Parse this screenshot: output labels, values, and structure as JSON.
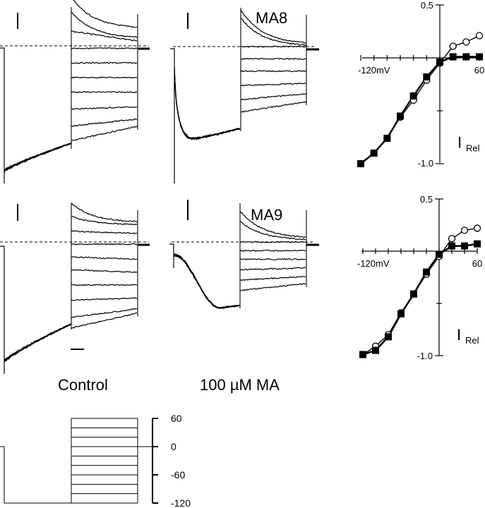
{
  "figure": {
    "panel_labels": {
      "control": "Control",
      "drug": "100 µM MA",
      "cell_row1": "MA8",
      "cell_row2": "MA9"
    },
    "colors": {
      "ink": "#000000",
      "background": "#ffffff"
    }
  },
  "chart_data": [
    {
      "type": "line",
      "id": "protocol",
      "title": "Voltage-step protocol",
      "ylabel": "mV",
      "ytick_labels": [
        "60",
        "0",
        "-60",
        "-120"
      ],
      "yticks": [
        60,
        0,
        -60,
        -120
      ],
      "holding_mV": 0,
      "prepulse_mV": -120,
      "test_steps_mV": [
        -120,
        -100,
        -80,
        -60,
        -40,
        -20,
        0,
        20,
        40,
        60
      ]
    },
    {
      "type": "line",
      "id": "iv-ma8",
      "title": "MA8 I-V",
      "xlabel": "mV",
      "ylabel": "I Rel",
      "x_tick_labels": {
        "min": "-120mV",
        "max": "60"
      },
      "y_tick_labels": {
        "max": "0.5",
        "min": "-1.0"
      },
      "xlim": [
        -120,
        60
      ],
      "ylim": [
        -1.0,
        0.5
      ],
      "x": [
        -120,
        -100,
        -80,
        -60,
        -40,
        -20,
        0,
        20,
        40,
        60
      ],
      "series": [
        {
          "name": "Control",
          "marker": "filled-square",
          "values": [
            -1.0,
            -0.9,
            -0.76,
            -0.55,
            -0.36,
            -0.18,
            -0.04,
            0.01,
            0.01,
            0.01
          ]
        },
        {
          "name": "100 µM MA",
          "marker": "open-circle",
          "values": [
            -1.0,
            -0.9,
            -0.76,
            -0.56,
            -0.4,
            -0.21,
            -0.05,
            0.11,
            0.15,
            0.21
          ]
        }
      ]
    },
    {
      "type": "line",
      "id": "iv-ma9",
      "title": "MA9 I-V",
      "xlabel": "mV",
      "ylabel": "I Rel",
      "x_tick_labels": {
        "min": "-120mV",
        "max": "60"
      },
      "y_tick_labels": {
        "max": "0.5",
        "min": "-1.0"
      },
      "xlim": [
        -120,
        60
      ],
      "ylim": [
        -1.0,
        0.5
      ],
      "x": [
        -120,
        -100,
        -80,
        -60,
        -40,
        -20,
        0,
        20,
        40,
        60
      ],
      "series": [
        {
          "name": "Control",
          "marker": "filled-square",
          "values": [
            -0.99,
            -0.95,
            -0.82,
            -0.6,
            -0.41,
            -0.2,
            -0.03,
            0.05,
            0.05,
            0.07
          ]
        },
        {
          "name": "100 µM MA",
          "marker": "open-circle",
          "values": [
            -0.99,
            -0.91,
            -0.8,
            -0.59,
            -0.41,
            -0.22,
            -0.05,
            0.12,
            0.2,
            0.22
          ]
        }
      ]
    },
    {
      "type": "line",
      "id": "traces",
      "title": "Current traces (relative to zero-current dashed line)",
      "panels": [
        {
          "name": "ma8-control",
          "prepulse": "slow-ramp",
          "tail_levels": [
            -1.0,
            -0.7,
            -0.3,
            0.05,
            0.35,
            0.65,
            0.95,
            1.3,
            1.65,
            1.95
          ],
          "tail_end_levels": [
            -0.35,
            -0.15,
            -0.1,
            0.05,
            0.35,
            0.65,
            0.95,
            1.25,
            1.5,
            1.65
          ]
        },
        {
          "name": "ma8-drug",
          "prepulse": "fast-peak",
          "tail_levels": [
            -0.9,
            -0.7,
            0.0,
            0.3,
            0.6,
            0.95,
            1.3,
            1.6
          ],
          "tail_end_levels": [
            -0.05,
            0.0,
            0.0,
            0.3,
            0.6,
            0.9,
            1.15,
            1.35
          ]
        },
        {
          "name": "ma9-control",
          "prepulse": "slow-ramp",
          "tail_levels": [
            -0.9,
            -0.6,
            -0.25,
            0.05,
            0.35,
            0.65,
            1.0,
            1.35,
            1.75,
            2.0
          ],
          "tail_end_levels": [
            -0.45,
            -0.4,
            -0.2,
            0.05,
            0.4,
            0.7,
            1.0,
            1.3,
            1.55,
            1.65
          ]
        },
        {
          "name": "ma9-drug",
          "prepulse": "delayed-peak",
          "tail_levels": [
            -0.9,
            -0.6,
            0.0,
            0.25,
            0.5,
            0.8,
            1.1,
            1.4
          ],
          "tail_end_levels": [
            -0.1,
            -0.05,
            0.0,
            0.25,
            0.5,
            0.75,
            1.0,
            1.2
          ]
        }
      ]
    }
  ]
}
